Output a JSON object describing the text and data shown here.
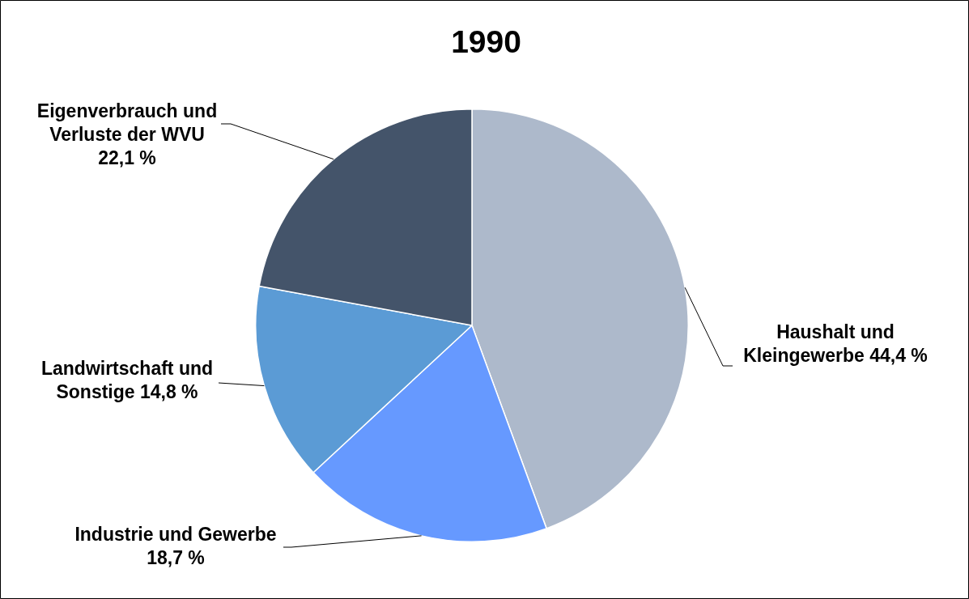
{
  "chart_data": {
    "type": "pie",
    "title": "1990",
    "categories": [
      "Haushalt und Kleingewerbe",
      "Industrie und Gewerbe",
      "Landwirtschaft und Sonstige",
      "Eigenverbrauch und Verluste der WVU"
    ],
    "values": [
      44.4,
      18.7,
      14.8,
      22.1
    ],
    "value_labels": [
      "44,4 %",
      "18,7 %",
      "14,8 %",
      "22,1 %"
    ],
    "colors": [
      "#adb9cb",
      "#6699ff",
      "#5b9bd5",
      "#44546a"
    ]
  }
}
